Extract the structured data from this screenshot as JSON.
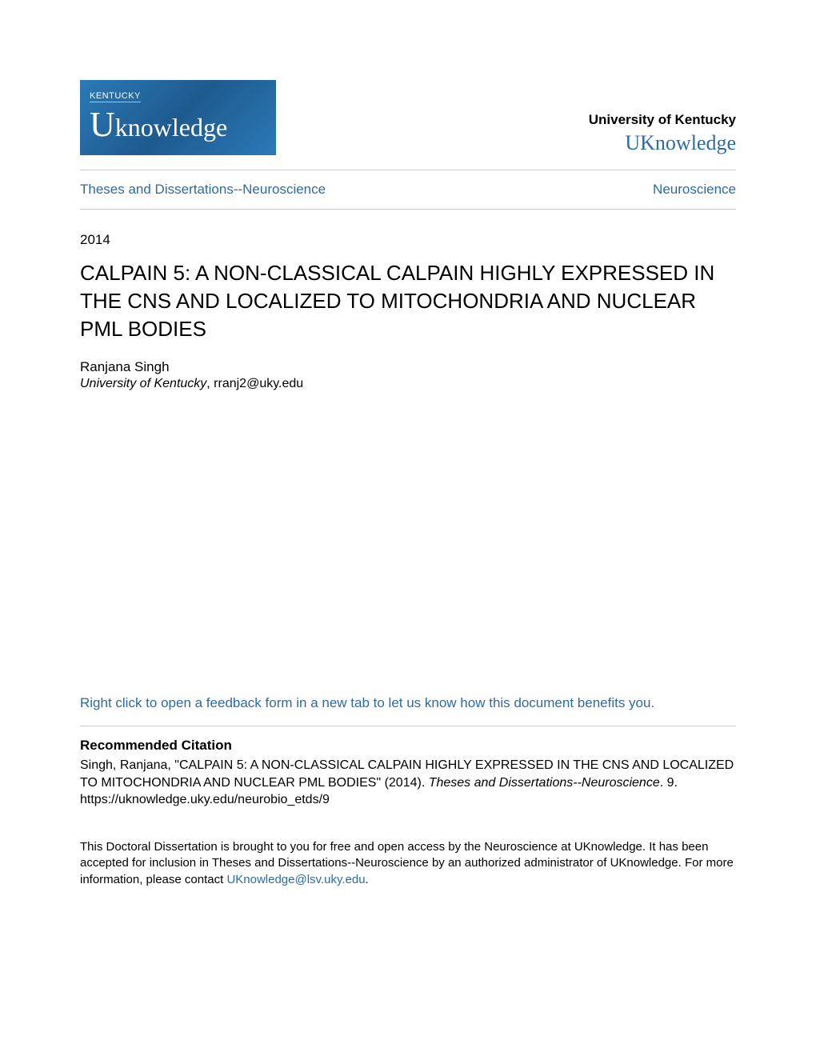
{
  "header": {
    "logo": {
      "small_text": "KENTUCKY",
      "large_prefix": "U",
      "large_rest": "knowledge",
      "bg_gradient_start": "#2b7ab8",
      "bg_gradient_mid": "#1e5a8e",
      "bg_gradient_end": "#2b7ab8"
    },
    "university_name": "University of Kentucky",
    "repository_name": "UKnowledge"
  },
  "nav": {
    "left": "Theses and Dissertations--Neuroscience",
    "right": "Neuroscience"
  },
  "metadata": {
    "year": "2014",
    "title": "CALPAIN 5: A NON-CLASSICAL CALPAIN HIGHLY EXPRESSED IN THE CNS AND LOCALIZED TO MITOCHONDRIA AND NUCLEAR PML BODIES",
    "author_name": "Ranjana Singh",
    "institution": "University of Kentucky",
    "email": ", rranj2@uky.edu"
  },
  "feedback": {
    "text": "Right click to open a feedback form in a new tab to let us know how this document benefits you."
  },
  "citation": {
    "heading": "Recommended Citation",
    "line1": "Singh, Ranjana, \"CALPAIN 5: A NON-CLASSICAL CALPAIN HIGHLY EXPRESSED IN THE CNS AND LOCALIZED TO MITOCHONDRIA AND NUCLEAR PML BODIES\" (2014). ",
    "series": "Theses and Dissertations--Neuroscience",
    "line1_after": ". 9.",
    "line2": "https://uknowledge.uky.edu/neurobio_etds/9"
  },
  "footer": {
    "text_before": "This Doctoral Dissertation is brought to you for free and open access by the Neuroscience at UKnowledge. It has been accepted for inclusion in Theses and Dissertations--Neuroscience by an authorized administrator of UKnowledge. For more information, please contact ",
    "email": "UKnowledge@lsv.uky.edu",
    "text_after": "."
  },
  "colors": {
    "link": "#2b6ca3",
    "text": "#000000",
    "divider": "#cccccc",
    "background": "#ffffff"
  },
  "typography": {
    "title_fontsize": 26,
    "body_fontsize": 17,
    "small_fontsize": 15,
    "repo_fontsize": 26
  }
}
